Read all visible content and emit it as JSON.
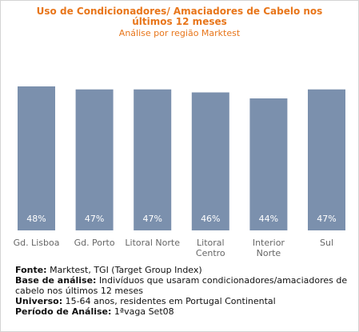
{
  "title_line1": "Uso de Condicionadores/ Amaciadores de Cabelo nos",
  "title_line2": "últimos 12 meses",
  "subtitle": "Análise por região Marktest",
  "colors": {
    "bar": "#7b90ad",
    "accent": "#e8761b",
    "bar_label": "#ffffff",
    "axis_label": "#666666"
  },
  "chart_data": {
    "type": "bar",
    "title": "Uso de Condicionadores/ Amaciadores de Cabelo nos últimos 12 meses",
    "subtitle": "Análise por região Marktest",
    "categories": [
      [
        "Gd. Lisboa"
      ],
      [
        "Gd. Porto"
      ],
      [
        "Litoral Norte"
      ],
      [
        "Litoral",
        "Centro"
      ],
      [
        "Interior",
        "Norte"
      ],
      [
        "Sul"
      ]
    ],
    "values": [
      48,
      47,
      47,
      46,
      44,
      47
    ],
    "value_labels": [
      "48%",
      "47%",
      "47%",
      "46%",
      "44%",
      "47%"
    ],
    "unit": "%",
    "ylim": [
      0,
      48
    ],
    "grid": false,
    "legend": "none"
  },
  "footer": {
    "fonte_label": "Fonte:",
    "fonte_value": "Marktest, TGI (Target Group Index)",
    "base_label": "Base de análise:",
    "base_value": "Indivíduos que usaram condicionadores/amaciadores de cabelo nos últimos 12 meses",
    "universo_label": "Universo:",
    "universo_value": "15-64 anos, residentes em Portugal Continental",
    "periodo_label": "Período de Análise:",
    "periodo_value": "1ªvaga Set08"
  }
}
